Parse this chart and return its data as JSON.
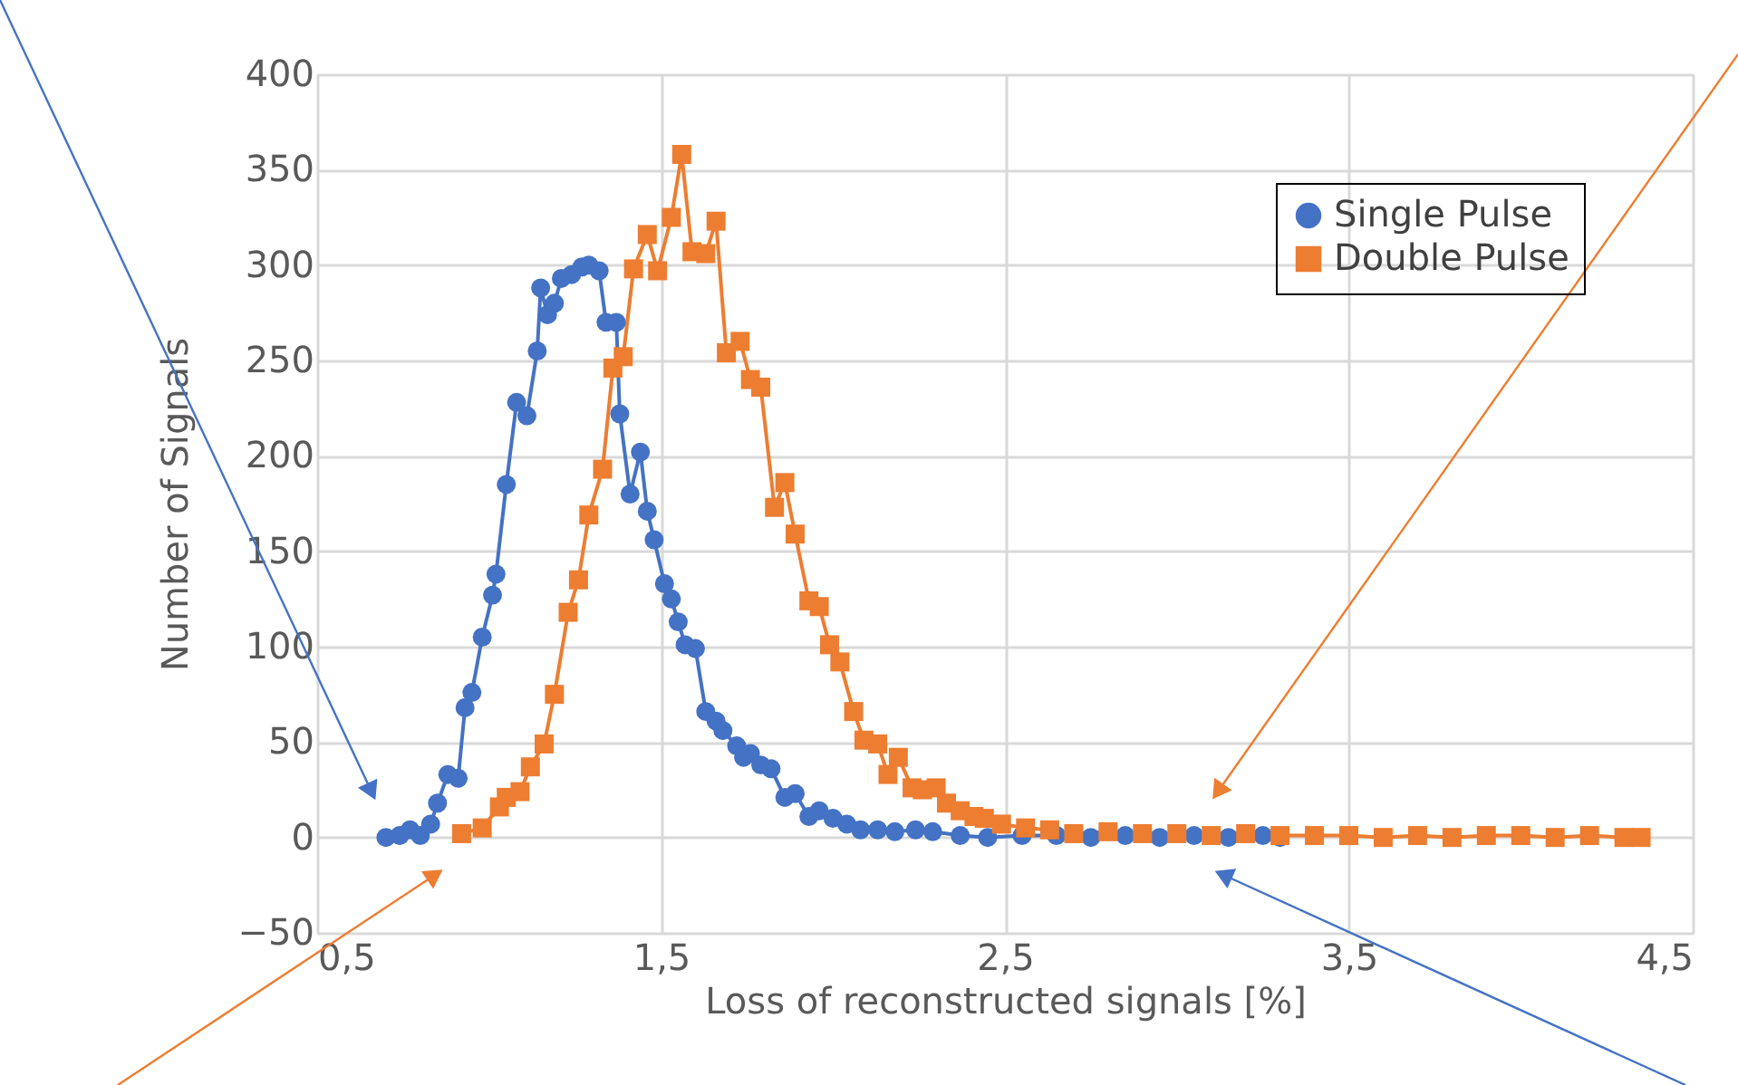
{
  "chart_data": {
    "type": "line",
    "xlabel": "Loss of reconstructed signals [%]",
    "ylabel": "Number of Signals",
    "xlim": [
      0.5,
      4.5
    ],
    "ylim": [
      -50,
      400
    ],
    "xticks": [
      {
        "value": 0.5,
        "label": "0,5"
      },
      {
        "value": 1.5,
        "label": "1,5"
      },
      {
        "value": 2.5,
        "label": "2,5"
      },
      {
        "value": 3.5,
        "label": "3,5"
      },
      {
        "value": 4.5,
        "label": "4,5"
      }
    ],
    "yticks": [
      -50,
      0,
      50,
      100,
      150,
      200,
      250,
      300,
      350,
      400
    ],
    "grid": true,
    "legend": "top right",
    "series": [
      {
        "name": "Single Pulse",
        "color": "#4472c4",
        "marker": "circle",
        "x": [
          0.7,
          0.74,
          0.77,
          0.8,
          0.83,
          0.85,
          0.88,
          0.91,
          0.93,
          0.95,
          0.98,
          1.01,
          1.02,
          1.05,
          1.08,
          1.11,
          1.14,
          1.15,
          1.17,
          1.19,
          1.21,
          1.24,
          1.27,
          1.29,
          1.32,
          1.34,
          1.37,
          1.38,
          1.41,
          1.44,
          1.46,
          1.48,
          1.51,
          1.53,
          1.55,
          1.57,
          1.6,
          1.63,
          1.66,
          1.68,
          1.72,
          1.74,
          1.76,
          1.79,
          1.82,
          1.86,
          1.89,
          1.93,
          1.96,
          2.0,
          2.04,
          2.08,
          2.13,
          2.18,
          2.24,
          2.29,
          2.37,
          2.45,
          2.55,
          2.65,
          2.75,
          2.85,
          2.95,
          3.05,
          3.15,
          3.25,
          3.3
        ],
        "values": [
          0,
          1,
          4,
          1,
          7,
          18,
          33,
          31,
          68,
          76,
          105,
          127,
          138,
          185,
          228,
          221,
          255,
          288,
          274,
          280,
          293,
          295,
          299,
          300,
          297,
          270,
          270,
          222,
          180,
          202,
          171,
          156,
          133,
          125,
          113,
          101,
          99,
          66,
          61,
          56,
          48,
          42,
          44,
          38,
          36,
          21,
          23,
          11,
          14,
          10,
          7,
          4,
          4,
          3,
          4,
          3,
          1,
          0,
          1,
          1,
          0,
          1,
          0,
          1,
          0,
          1,
          0
        ]
      },
      {
        "name": "Double Pulse",
        "color": "#ed7d31",
        "marker": "square",
        "x": [
          0.92,
          0.98,
          1.03,
          1.05,
          1.09,
          1.12,
          1.16,
          1.19,
          1.23,
          1.26,
          1.29,
          1.33,
          1.36,
          1.39,
          1.42,
          1.46,
          1.49,
          1.53,
          1.56,
          1.59,
          1.63,
          1.66,
          1.69,
          1.73,
          1.76,
          1.79,
          1.83,
          1.86,
          1.89,
          1.93,
          1.96,
          1.99,
          2.02,
          2.06,
          2.09,
          2.13,
          2.16,
          2.19,
          2.23,
          2.26,
          2.3,
          2.33,
          2.37,
          2.41,
          2.44,
          2.49,
          2.56,
          2.63,
          2.7,
          2.8,
          2.9,
          3.0,
          3.1,
          3.2,
          3.3,
          3.4,
          3.5,
          3.6,
          3.7,
          3.8,
          3.9,
          4.0,
          4.1,
          4.2,
          4.3,
          4.35
        ],
        "values": [
          2,
          5,
          16,
          21,
          24,
          37,
          49,
          75,
          118,
          135,
          169,
          193,
          246,
          252,
          298,
          316,
          297,
          325,
          358,
          307,
          306,
          323,
          254,
          260,
          240,
          236,
          173,
          186,
          159,
          124,
          121,
          101,
          92,
          66,
          51,
          49,
          33,
          42,
          26,
          25,
          26,
          18,
          14,
          11,
          10,
          7,
          5,
          4,
          2,
          3,
          2,
          2,
          1,
          2,
          1,
          1,
          1,
          0,
          1,
          0,
          1,
          1,
          0,
          1,
          0,
          0
        ]
      }
    ]
  }
}
